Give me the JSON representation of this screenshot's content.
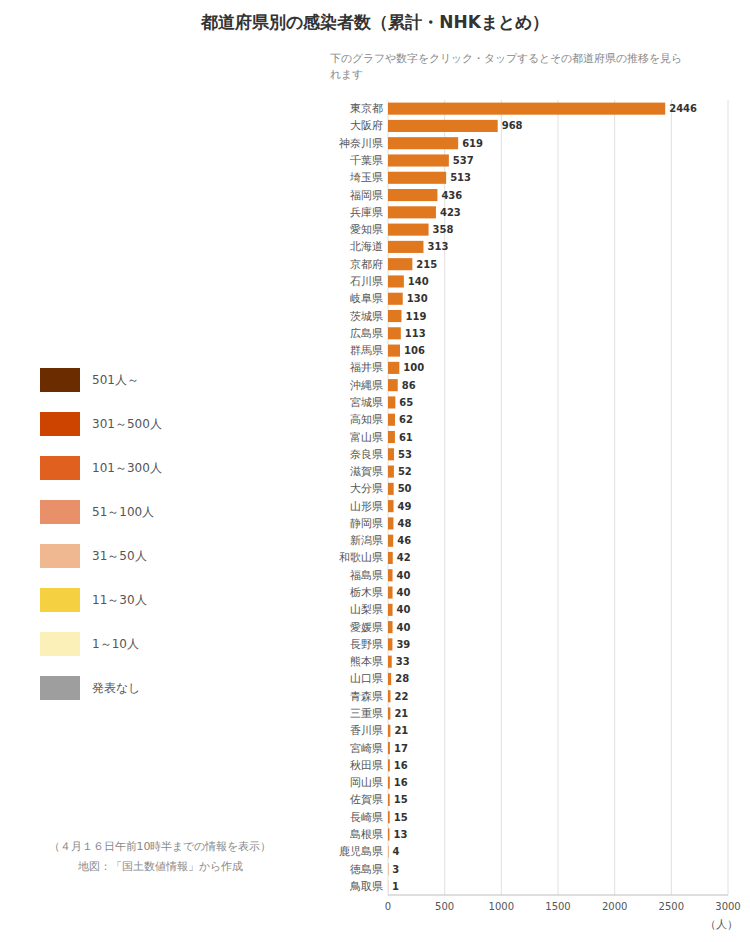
{
  "chart_data": {
    "type": "bar",
    "orientation": "horizontal",
    "title": "都道府県別の感染者数（累計・NHKまとめ）",
    "subtitle": "下のグラフや数字をクリック・タップするとその都道府県の推移を見ら\nれます",
    "xlabel": "（人）",
    "categories": [
      "東京都",
      "大阪府",
      "神奈川県",
      "千葉県",
      "埼玉県",
      "福岡県",
      "兵庫県",
      "愛知県",
      "北海道",
      "京都府",
      "石川県",
      "岐阜県",
      "茨城県",
      "広島県",
      "群馬県",
      "福井県",
      "沖縄県",
      "宮城県",
      "高知県",
      "富山県",
      "奈良県",
      "滋賀県",
      "大分県",
      "山形県",
      "静岡県",
      "新潟県",
      "和歌山県",
      "福島県",
      "栃木県",
      "山梨県",
      "愛媛県",
      "長野県",
      "熊本県",
      "山口県",
      "青森県",
      "三重県",
      "香川県",
      "宮崎県",
      "秋田県",
      "岡山県",
      "佐賀県",
      "長崎県",
      "島根県",
      "鹿児島県",
      "徳島県",
      "鳥取県"
    ],
    "values": [
      2446,
      968,
      619,
      537,
      513,
      436,
      423,
      358,
      313,
      215,
      140,
      130,
      119,
      113,
      106,
      100,
      86,
      65,
      62,
      61,
      53,
      52,
      50,
      49,
      48,
      46,
      42,
      40,
      40,
      40,
      40,
      39,
      33,
      28,
      22,
      21,
      21,
      17,
      16,
      16,
      15,
      15,
      13,
      4,
      3,
      1
    ],
    "color": "#e07820",
    "xlim": [
      0,
      3000
    ],
    "xticks": [
      0,
      500,
      1000,
      1500,
      2000,
      2500,
      3000
    ],
    "grid": true,
    "data_labels": true,
    "annotations": [
      {
        "text": "501人～",
        "color": "#6b2d00"
      },
      {
        "text": "301～500人",
        "color": "#cc4400"
      },
      {
        "text": "101～300人",
        "color": "#e06020"
      },
      {
        "text": "51～100人",
        "color": "#e8906a"
      },
      {
        "text": "31～50人",
        "color": "#f0b890"
      },
      {
        "text": "11～30人",
        "color": "#f5d040"
      },
      {
        "text": "1～10人",
        "color": "#faf0b8"
      },
      {
        "text": "発表なし",
        "color": "#9e9e9e"
      },
      {
        "text": "（４月１６日午前10時半までの情報を表示）"
      },
      {
        "text": "地図：「国土数値情報」から作成"
      }
    ]
  }
}
